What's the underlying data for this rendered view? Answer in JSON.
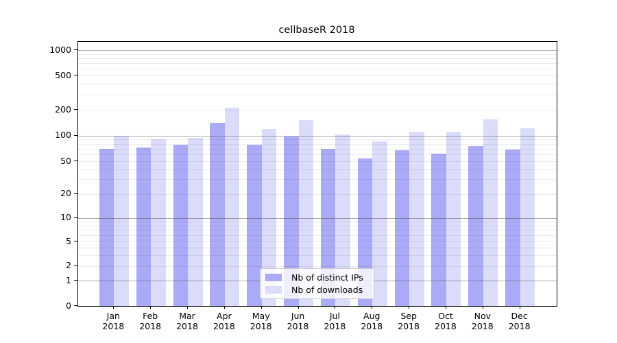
{
  "chart_data": {
    "type": "bar",
    "title": "cellbaseR 2018",
    "categories": [
      "Jan",
      "Feb",
      "Mar",
      "Apr",
      "May",
      "Jun",
      "Jul",
      "Aug",
      "Sep",
      "Oct",
      "Nov",
      "Dec"
    ],
    "category_year": "2018",
    "series": [
      {
        "name": "Nb of distinct IPs",
        "color": "#aaaaf6",
        "values": [
          70,
          73,
          78,
          141,
          78,
          97,
          70,
          54,
          67,
          61,
          75,
          69
        ]
      },
      {
        "name": "Nb of downloads",
        "color": "#dbdbfa",
        "values": [
          100,
          91,
          93,
          212,
          120,
          152,
          102,
          86,
          110,
          110,
          155,
          122
        ]
      }
    ],
    "xlabel": "",
    "ylabel": "",
    "yscale": "symlog",
    "ylim": [
      0,
      1250
    ],
    "yticks": [
      0,
      1,
      2,
      5,
      10,
      20,
      50,
      100,
      200,
      500,
      1000
    ],
    "grid": "on",
    "legend_position": "lower center"
  },
  "colors": {
    "background": "#ffffff",
    "bar_distinct_ips": "#aaaaf6",
    "bar_downloads": "#dbdbfa",
    "grid_major": "#9e9e9e",
    "grid_minor": "#ebebeb",
    "axis": "#000000",
    "legend_border": "#cccccc"
  }
}
